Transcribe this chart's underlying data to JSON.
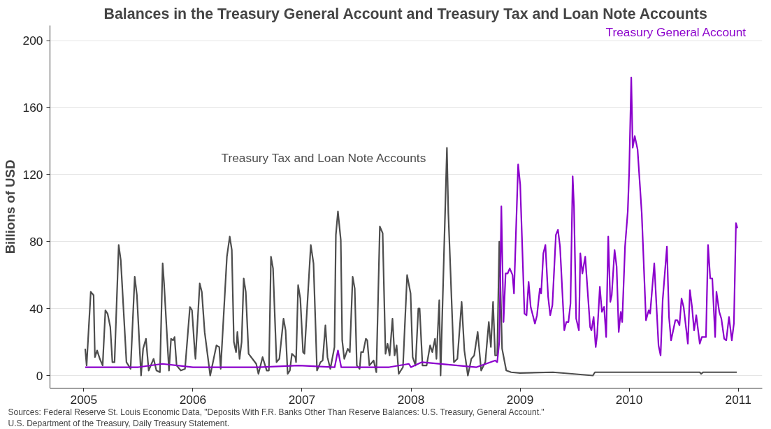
{
  "chart_data": {
    "type": "line",
    "title": "Balances in the Treasury General Account and Treasury Tax and Loan Note Accounts",
    "ylabel": "Billions of USD",
    "xlim": [
      2004.69,
      2011.22
    ],
    "xticks": [
      2005,
      2006,
      2007,
      2008,
      2009,
      2010,
      2011
    ],
    "ylim": [
      -7.5,
      209
    ],
    "yticks": [
      0,
      40,
      80,
      120,
      160,
      200
    ],
    "grid": "y",
    "legend": false,
    "line_style": "solid",
    "annotations": [
      "Sources: Federal Reserve St. Louis Economic Data, \"Deposits With F.R. Banks Other Than Reserve Balances: U.S. Treasury, General Account.\"",
      "U.S. Department of the Treasury, Daily Treasury Statement."
    ],
    "series": [
      {
        "name": "Treasury Tax and Loan Note Accounts",
        "color": "#4d4d4d",
        "x": [
          2005.013,
          2005.026,
          2005.064,
          2005.09,
          2005.102,
          2005.122,
          2005.147,
          2005.173,
          2005.198,
          2005.218,
          2005.243,
          2005.262,
          2005.282,
          2005.32,
          2005.339,
          2005.391,
          2005.429,
          2005.467,
          2005.487,
          2005.525,
          2005.544,
          2005.57,
          2005.595,
          2005.64,
          2005.666,
          2005.698,
          2005.723,
          2005.736,
          2005.781,
          2005.8,
          2005.819,
          2005.832,
          2005.851,
          2005.89,
          2005.928,
          2005.973,
          2005.992,
          2006.018,
          2006.024,
          2006.063,
          2006.082,
          2006.108,
          2006.159,
          2006.216,
          2006.242,
          2006.255,
          2006.312,
          2006.338,
          2006.357,
          2006.376,
          2006.396,
          2006.408,
          2006.428,
          2006.447,
          2006.466,
          2006.485,
          2006.511,
          2006.581,
          2006.601,
          2006.639,
          2006.677,
          2006.697,
          2006.716,
          2006.735,
          2006.767,
          2006.793,
          2006.831,
          2006.85,
          2006.869,
          2006.889,
          2006.908,
          2006.94,
          2006.946,
          2006.965,
          2006.985,
          2007.01,
          2007.023,
          2007.081,
          2007.106,
          2007.138,
          2007.17,
          2007.19,
          2007.215,
          2007.234,
          2007.26,
          2007.298,
          2007.311,
          2007.33,
          2007.356,
          2007.369,
          2007.388,
          2007.42,
          2007.439,
          2007.465,
          2007.484,
          2007.503,
          2007.529,
          2007.542,
          2007.561,
          2007.586,
          2007.599,
          2007.618,
          2007.657,
          2007.682,
          2007.714,
          2007.74,
          2007.766,
          2007.785,
          2007.804,
          2007.83,
          2007.849,
          2007.868,
          2007.887,
          2007.926,
          2007.964,
          2007.996,
          2008.015,
          2008.041,
          2008.067,
          2008.079,
          2008.105,
          2008.143,
          2008.175,
          2008.195,
          2008.22,
          2008.233,
          2008.259,
          2008.271,
          2008.329,
          2008.342,
          2008.393,
          2008.425,
          2008.464,
          2008.489,
          2008.521,
          2008.553,
          2008.579,
          2008.611,
          2008.643,
          2008.681,
          2008.713,
          2008.732,
          2008.752,
          2008.771,
          2008.79,
          2008.809,
          2008.835,
          2008.873,
          2008.918,
          2008.999,
          2009.302,
          2009.667,
          2009.686,
          2010.647,
          2010.659,
          2010.679,
          2010.986
        ],
        "values": [
          16,
          6,
          50,
          48,
          11,
          15,
          10,
          6,
          39,
          37,
          29,
          8,
          8,
          78,
          69,
          8,
          4,
          59,
          48,
          0,
          16,
          22,
          3,
          10,
          3,
          2,
          67,
          55,
          3,
          22,
          21,
          23,
          6,
          3,
          4,
          41,
          39,
          14,
          10,
          55,
          50,
          26,
          0,
          18,
          17,
          4,
          71,
          83,
          75,
          20,
          14,
          26,
          10,
          20,
          58,
          50,
          13,
          7,
          1,
          11,
          3,
          3,
          71,
          64,
          8,
          10,
          34,
          27,
          1,
          3,
          13,
          11,
          8,
          54,
          46,
          14,
          13,
          78,
          67,
          3,
          8,
          9,
          30,
          11,
          4,
          17,
          84,
          98,
          81,
          21,
          10,
          16,
          14,
          59,
          52,
          6,
          4,
          14,
          14,
          22,
          21,
          6,
          9,
          2,
          89,
          85,
          13,
          19,
          12,
          34,
          12,
          18,
          1,
          5,
          60,
          49,
          11,
          6,
          40,
          40,
          6,
          6,
          18,
          14,
          22,
          10,
          45,
          0,
          136,
          97,
          8,
          10,
          44,
          15,
          0,
          10,
          12,
          26,
          3,
          8,
          32,
          17,
          44,
          12,
          12,
          80,
          16,
          3,
          2,
          1.5,
          2,
          0,
          2,
          2,
          1,
          2,
          2
        ]
      },
      {
        "name": "Treasury General Account",
        "color": "#8b00cc",
        "x": [
          2005.013,
          2005.5,
          2005.72,
          2006.0,
          2006.6,
          2006.97,
          2007.3,
          2007.33,
          2007.36,
          2007.8,
          2007.98,
          2008.0,
          2008.1,
          2008.6,
          2008.771,
          2008.79,
          2008.809,
          2008.828,
          2008.848,
          2008.867,
          2008.886,
          2008.905,
          2008.931,
          2008.944,
          2008.982,
          2009.001,
          2009.04,
          2009.059,
          2009.078,
          2009.097,
          2009.136,
          2009.155,
          2009.181,
          2009.193,
          2009.213,
          2009.232,
          2009.257,
          2009.276,
          2009.296,
          2009.328,
          2009.347,
          2009.366,
          2009.405,
          2009.424,
          2009.443,
          2009.462,
          2009.482,
          2009.494,
          2009.514,
          2009.539,
          2009.552,
          2009.571,
          2009.597,
          2009.642,
          2009.654,
          2009.674,
          2009.693,
          2009.706,
          2009.731,
          2009.75,
          2009.77,
          2009.789,
          2009.808,
          2009.827,
          2009.84,
          2009.866,
          2009.885,
          2009.904,
          2009.923,
          2009.936,
          2009.962,
          2009.987,
          2010.0,
          2010.019,
          2010.032,
          2010.051,
          2010.077,
          2010.115,
          2010.154,
          2010.179,
          2010.192,
          2010.23,
          2010.269,
          2010.288,
          2010.307,
          2010.346,
          2010.365,
          2010.384,
          2010.423,
          2010.442,
          2010.461,
          2010.48,
          2010.499,
          2010.538,
          2010.557,
          2010.576,
          2010.595,
          2010.615,
          2010.647,
          2010.666,
          2010.704,
          2010.723,
          2010.743,
          2010.762,
          2010.788,
          2010.8,
          2010.826,
          2010.845,
          2010.871,
          2010.89,
          2010.915,
          2010.941,
          2010.96,
          2010.979,
          2010.992
        ],
        "values": [
          5,
          5,
          7,
          5,
          5,
          6,
          5,
          15,
          5,
          5,
          7,
          5,
          8,
          5,
          9,
          8,
          20,
          101,
          32,
          61,
          61,
          64,
          60,
          49,
          126,
          114,
          37,
          36,
          56,
          41,
          31,
          36,
          52,
          49,
          73,
          78,
          47,
          36,
          42,
          84,
          87,
          77,
          27,
          32,
          32,
          43,
          119,
          101,
          34,
          27,
          73,
          61,
          71,
          29,
          27,
          35,
          17,
          24,
          53,
          38,
          41,
          23,
          83,
          44,
          48,
          75,
          65,
          26,
          38,
          32,
          77,
          98,
          122,
          178,
          136,
          143,
          135,
          97,
          33,
          39,
          37,
          67,
          18,
          12,
          45,
          77,
          35,
          21,
          33,
          33,
          30,
          46,
          41,
          19,
          51,
          41,
          27,
          36,
          19,
          23,
          23,
          78,
          58,
          58,
          23,
          50,
          38,
          34,
          22,
          21,
          35,
          21,
          31,
          91,
          88
        ]
      }
    ]
  }
}
